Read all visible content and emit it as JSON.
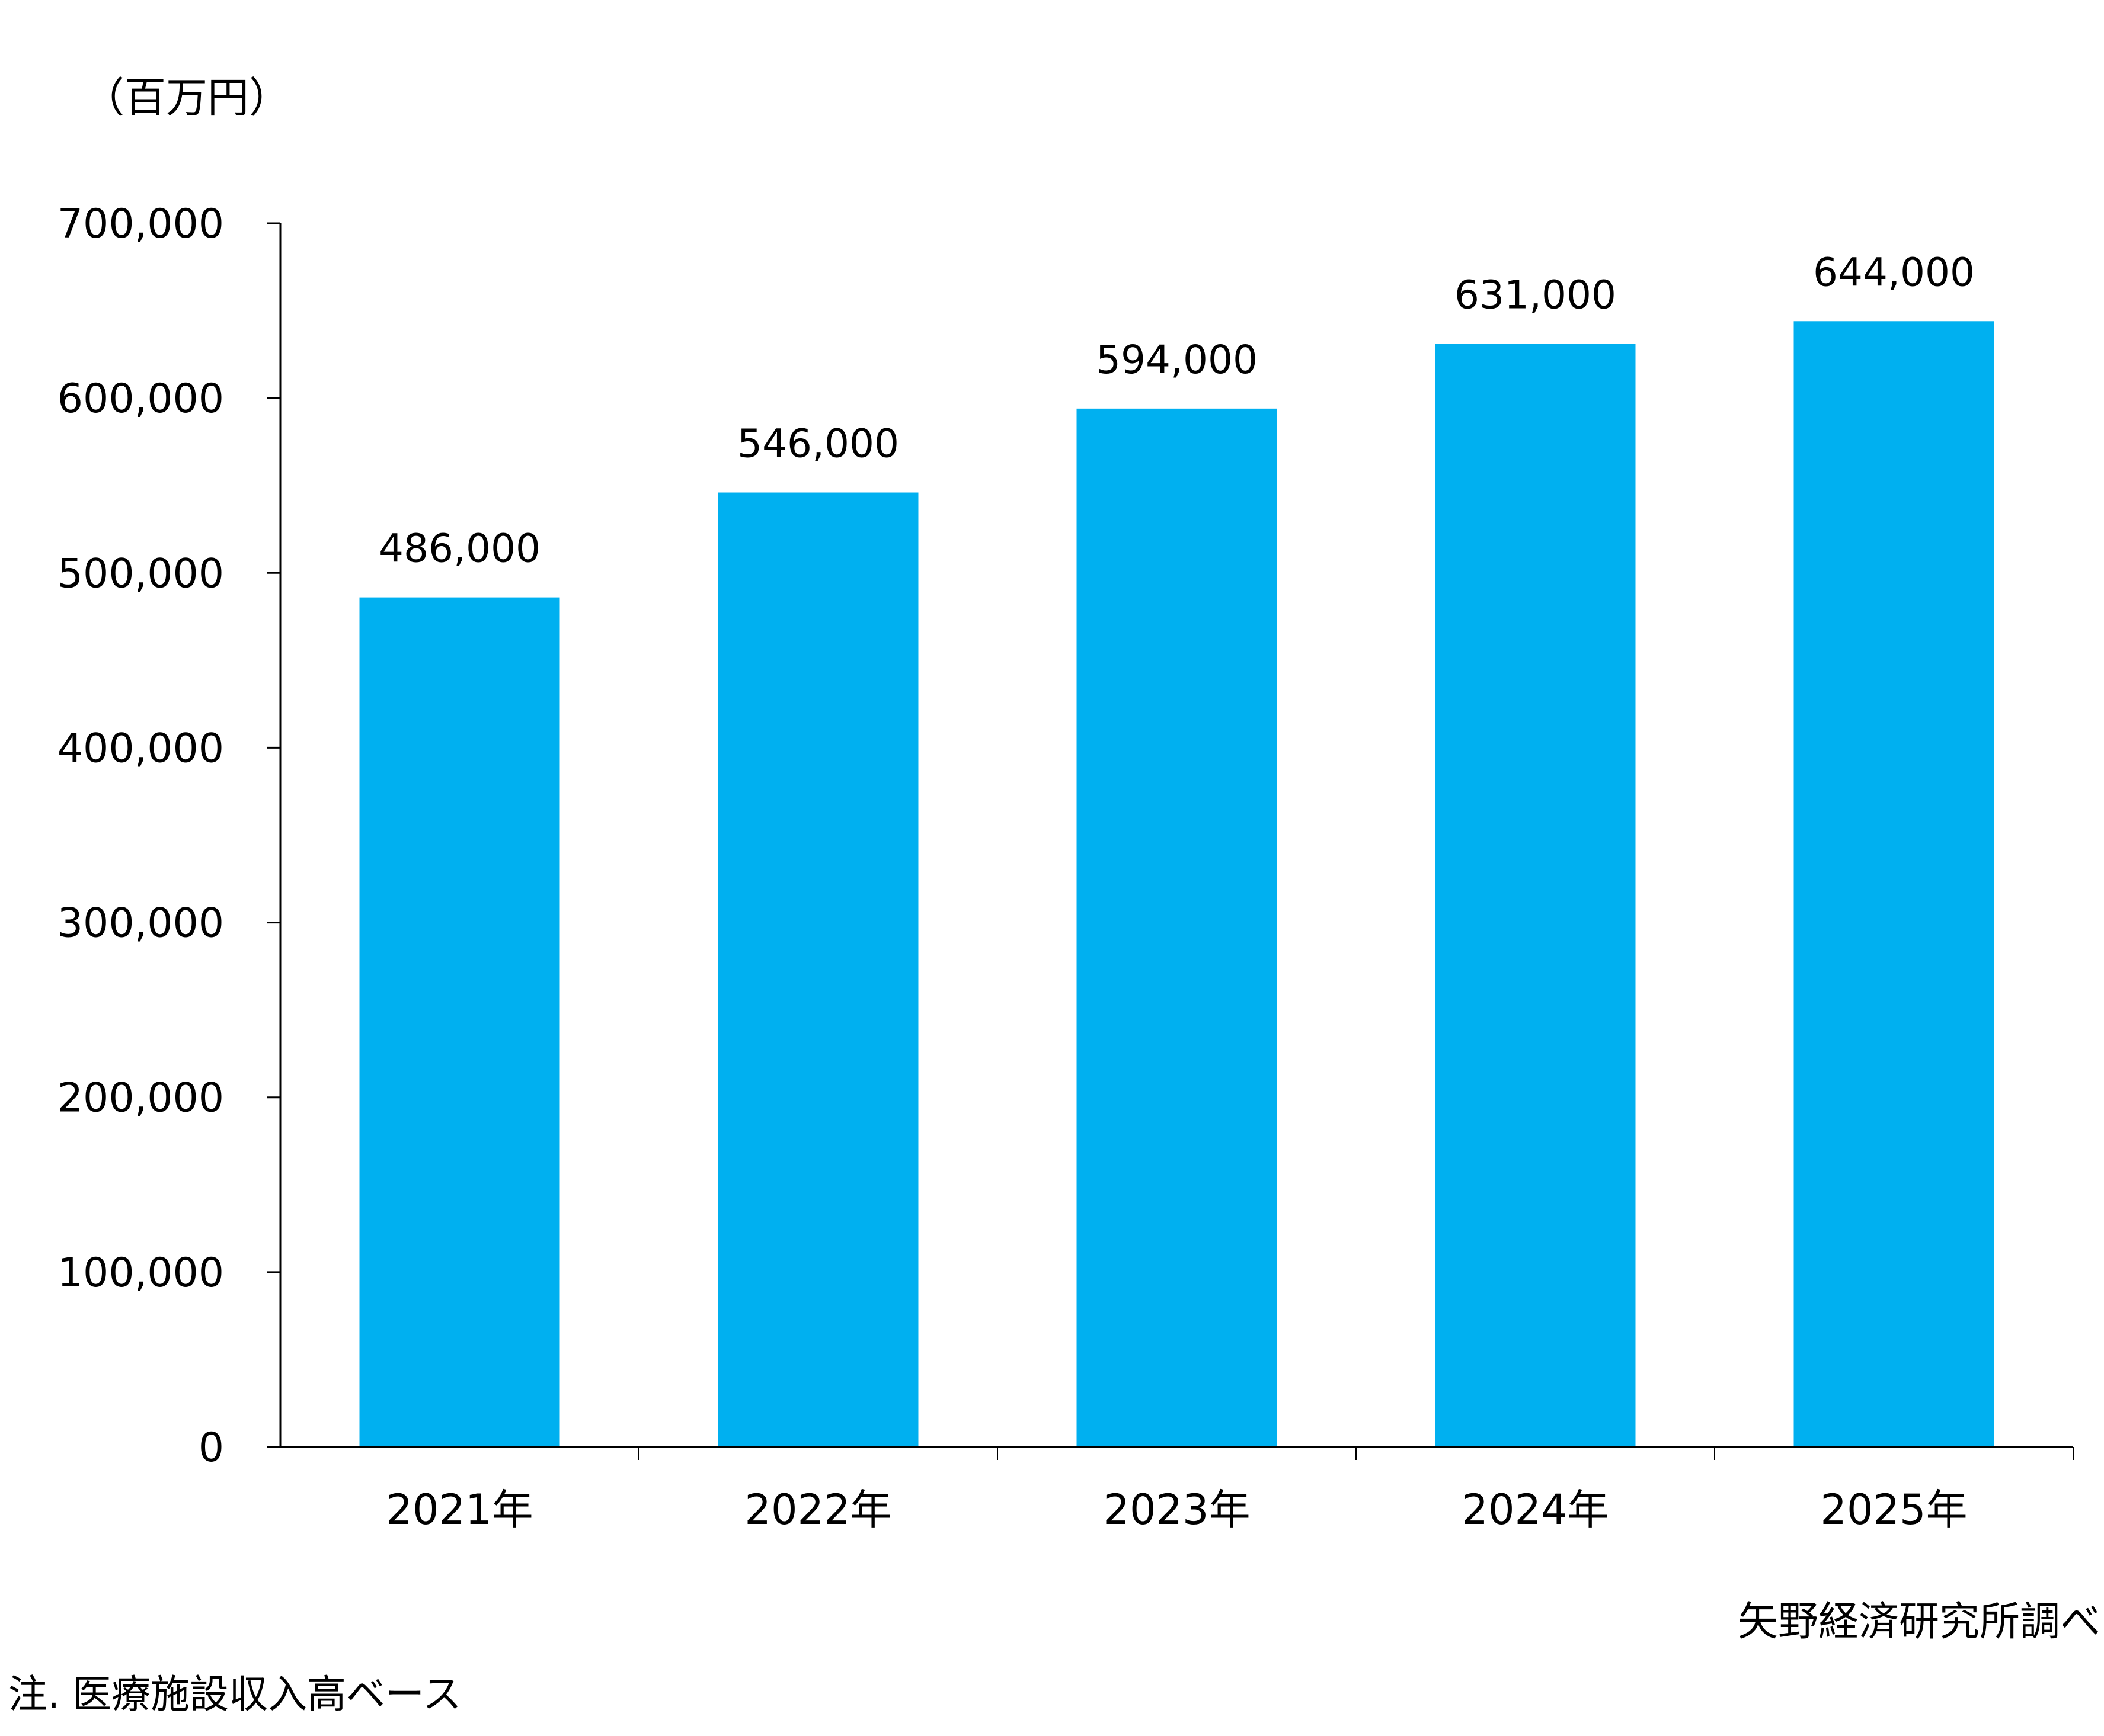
{
  "chart_data": {
    "type": "bar",
    "unit_label": "（百万円）",
    "categories": [
      "2021年",
      "2022年",
      "2023年",
      "2024年",
      "2025年"
    ],
    "values": [
      486000,
      546000,
      594000,
      631000,
      644000
    ],
    "value_labels": [
      "486,000",
      "546,000",
      "594,000",
      "631,000",
      "644,000"
    ],
    "ylim": [
      0,
      700000
    ],
    "y_ticks": [
      0,
      100000,
      200000,
      300000,
      400000,
      500000,
      600000,
      700000
    ],
    "y_tick_labels": [
      "0",
      "100,000",
      "200,000",
      "300,000",
      "400,000",
      "500,000",
      "600,000",
      "700,000"
    ],
    "bar_color": "#00B0F0",
    "grid": false,
    "legend": "none"
  },
  "source_note": "矢野経済研究所調べ",
  "footnote": "注. 医療施設収入高ベース"
}
